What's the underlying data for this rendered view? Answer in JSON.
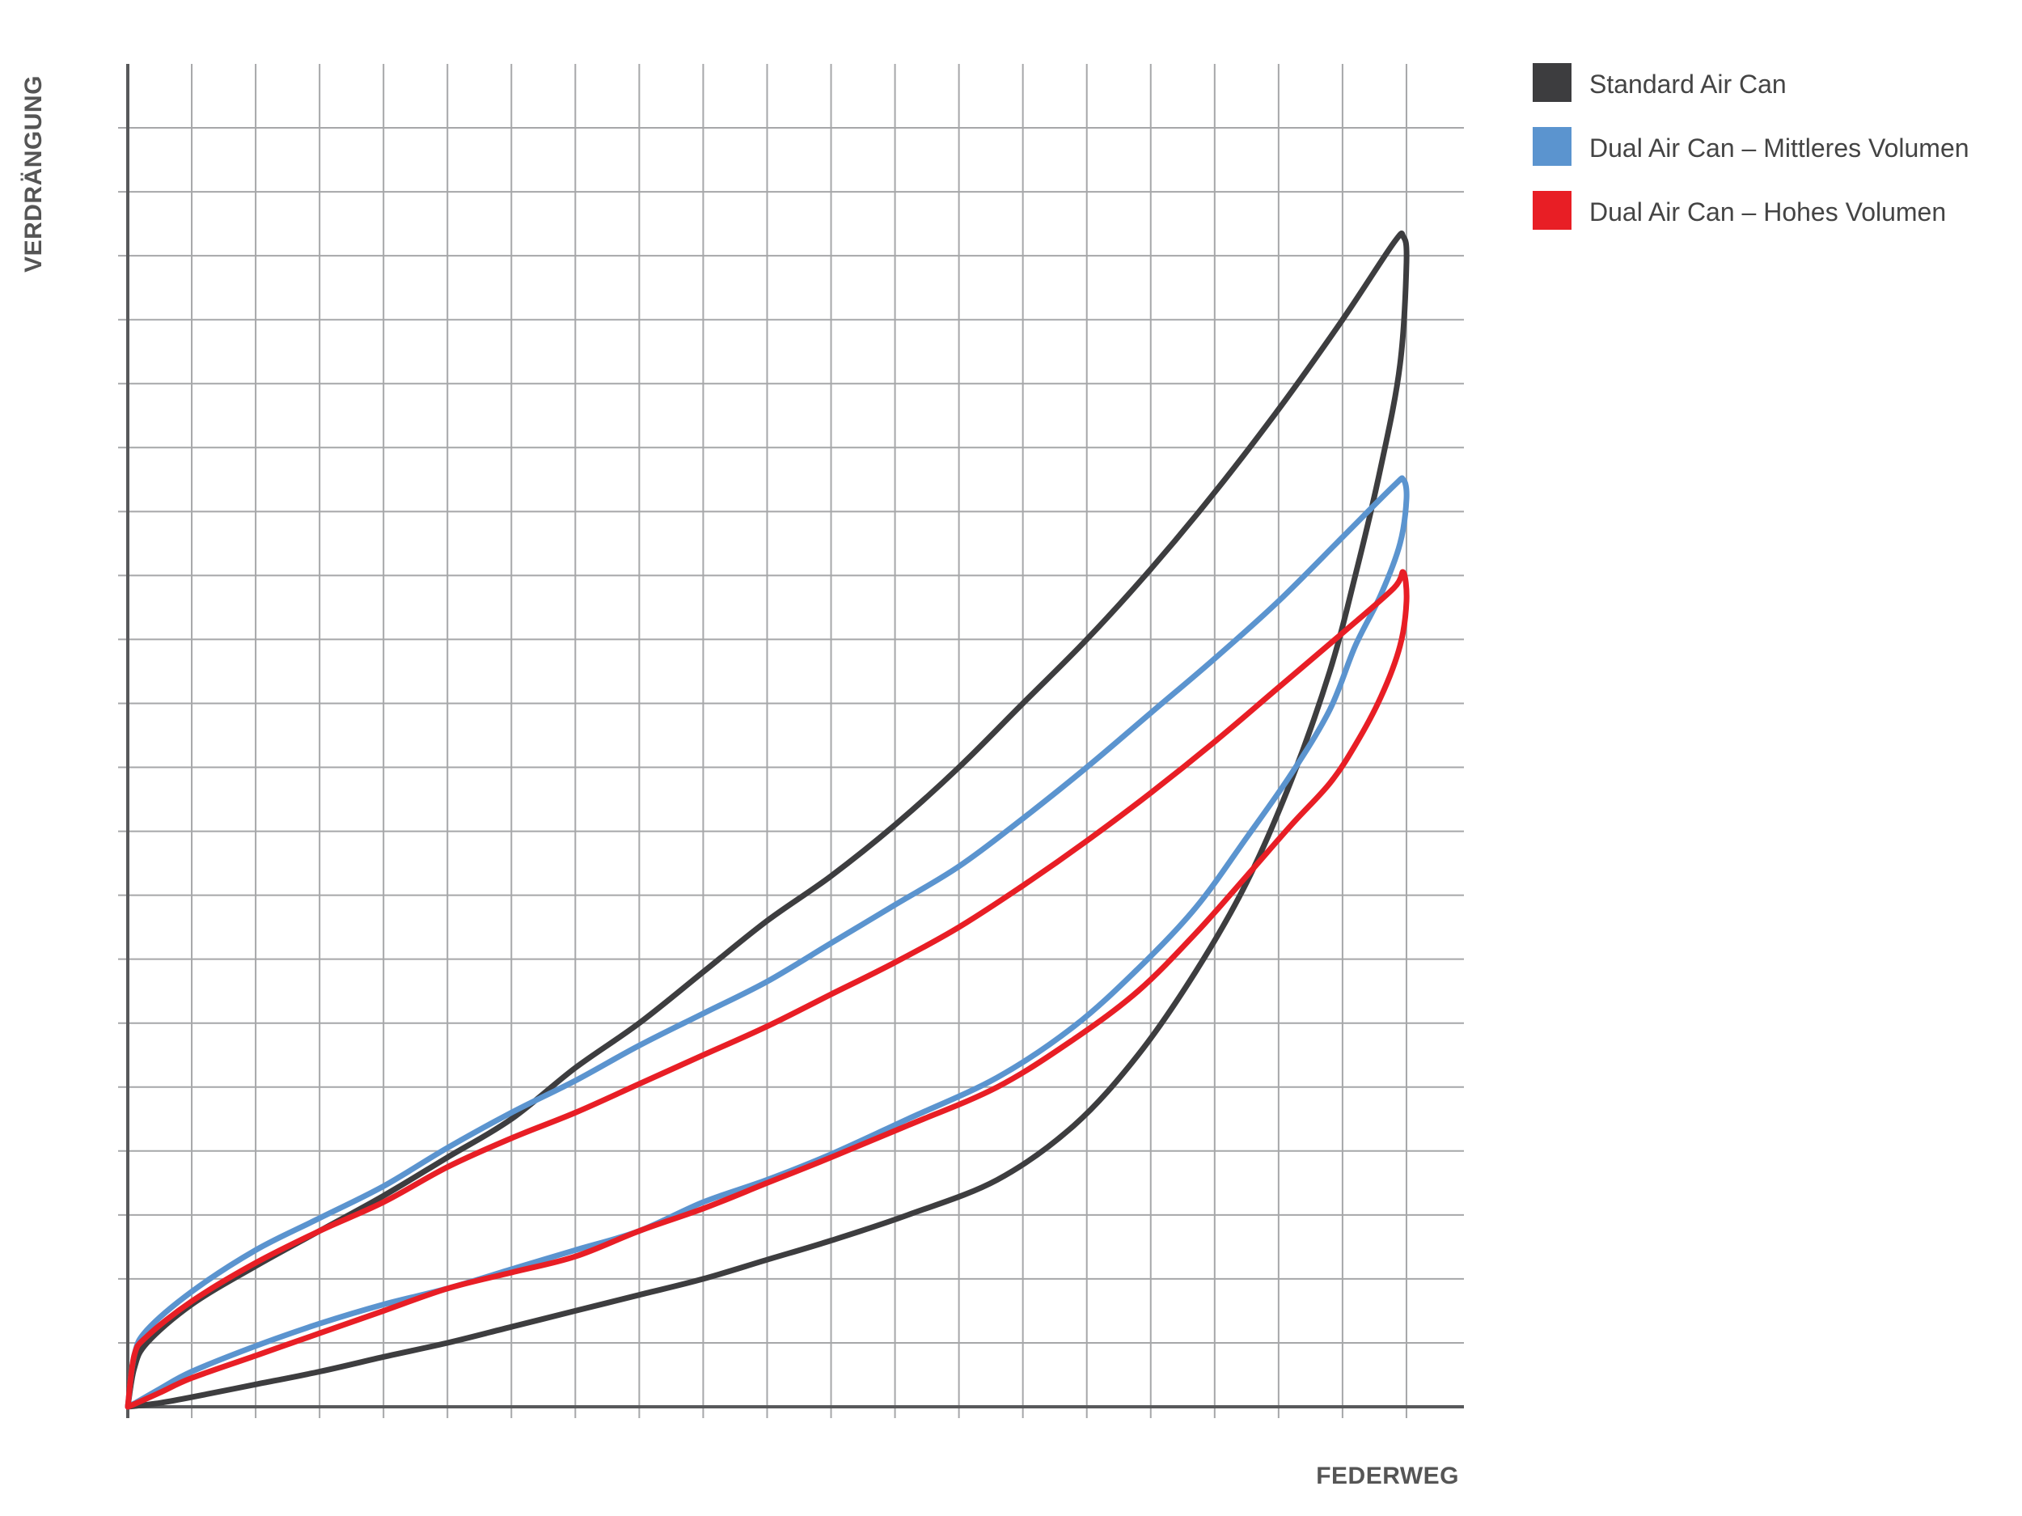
{
  "chart_data": {
    "type": "line",
    "title": "",
    "xlabel": "FEDERWEG",
    "ylabel": "VERDRÄNGUNG",
    "xlim": [
      0,
      21
    ],
    "ylim": [
      0,
      21
    ],
    "grid": true,
    "legend_position": "top-right",
    "series": [
      {
        "name": "Standard Air Can",
        "color": "#3d3d3f",
        "x": [
          0,
          0.1,
          0.3,
          1,
          2,
          3,
          4,
          5,
          6,
          7,
          8,
          9,
          10,
          11,
          12,
          13,
          14,
          15,
          16,
          17,
          18,
          19,
          19.8,
          19.95,
          20,
          19.9,
          19.6,
          19.2,
          18.8,
          18.2,
          17.5,
          16.7,
          15.8,
          14.8,
          13.6,
          12.2,
          11,
          10,
          9,
          8,
          7,
          6,
          5,
          4,
          3,
          2,
          1,
          0.5,
          0.1,
          0
        ],
        "y": [
          0,
          0.6,
          1.0,
          1.6,
          2.2,
          2.75,
          3.3,
          3.9,
          4.5,
          5.3,
          6.0,
          6.8,
          7.6,
          8.3,
          9.1,
          10.0,
          11.0,
          12.0,
          13.1,
          14.3,
          15.6,
          17.0,
          18.2,
          18.3,
          17.9,
          16.3,
          14.7,
          13.0,
          11.5,
          9.8,
          8.2,
          6.8,
          5.5,
          4.4,
          3.55,
          3.0,
          2.6,
          2.3,
          2.0,
          1.75,
          1.5,
          1.25,
          1.0,
          0.78,
          0.55,
          0.35,
          0.15,
          0.06,
          0.01,
          0
        ]
      },
      {
        "name": "Dual Air Can – Mittleres Volumen",
        "color": "#5b94cf",
        "x": [
          0,
          0.1,
          0.3,
          1,
          2,
          3,
          4,
          5,
          6,
          7,
          8,
          9,
          10,
          11,
          12,
          13,
          14,
          15,
          16,
          17,
          18,
          19,
          19.8,
          19.95,
          20,
          19.9,
          19.6,
          19.2,
          18.8,
          18.2,
          17.5,
          16.7,
          15.8,
          14.8,
          13.6,
          12.2,
          11,
          10,
          9,
          8,
          7,
          6,
          5,
          4,
          3,
          2,
          1,
          0.5,
          0.1,
          0
        ],
        "y": [
          0,
          0.8,
          1.2,
          1.8,
          2.45,
          2.95,
          3.45,
          4.05,
          4.6,
          5.1,
          5.65,
          6.15,
          6.65,
          7.25,
          7.85,
          8.45,
          9.2,
          10.0,
          10.85,
          11.7,
          12.6,
          13.6,
          14.4,
          14.5,
          14.2,
          13.5,
          12.7,
          11.9,
          10.9,
          9.9,
          8.9,
          7.8,
          6.85,
          5.95,
          5.15,
          4.5,
          3.95,
          3.55,
          3.2,
          2.75,
          2.45,
          2.15,
          1.85,
          1.6,
          1.3,
          0.95,
          0.55,
          0.28,
          0.05,
          0
        ]
      },
      {
        "name": "Dual Air Can – Hohes Volumen",
        "color": "#e81e25",
        "x": [
          0,
          0.1,
          0.3,
          1,
          2,
          3,
          4,
          5,
          6,
          7,
          8,
          9,
          10,
          11,
          12,
          13,
          14,
          15,
          16,
          17,
          18,
          19,
          19.8,
          19.95,
          20,
          19.9,
          19.6,
          19.2,
          18.8,
          18.2,
          17.5,
          16.7,
          15.8,
          14.8,
          13.6,
          12.2,
          11,
          10,
          9,
          8,
          7,
          6,
          5,
          4,
          3,
          2,
          1,
          0.5,
          0.1,
          0
        ],
        "y": [
          0,
          0.8,
          1.1,
          1.65,
          2.25,
          2.75,
          3.2,
          3.75,
          4.2,
          4.6,
          5.05,
          5.5,
          5.95,
          6.45,
          6.95,
          7.5,
          8.15,
          8.85,
          9.6,
          10.4,
          11.25,
          12.1,
          12.8,
          13.05,
          12.6,
          11.9,
          11.1,
          10.35,
          9.75,
          9.1,
          8.3,
          7.4,
          6.5,
          5.75,
          5.0,
          4.4,
          3.9,
          3.5,
          3.1,
          2.75,
          2.35,
          2.1,
          1.85,
          1.5,
          1.15,
          0.8,
          0.45,
          0.22,
          0.04,
          0
        ]
      }
    ]
  }
}
